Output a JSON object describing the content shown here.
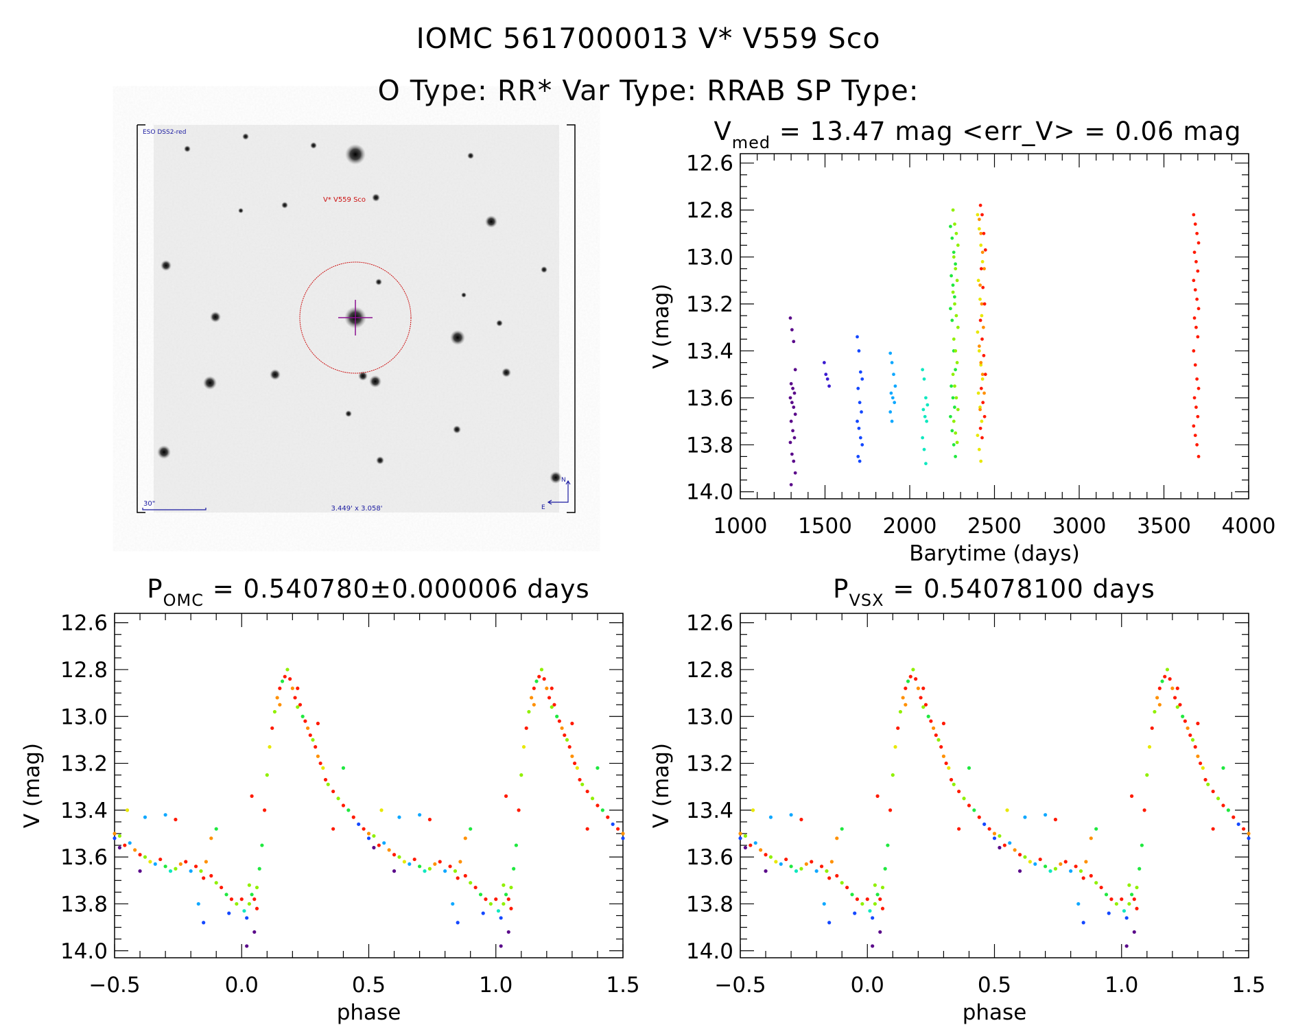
{
  "header": {
    "title": "IOMC 5617000013   V* V559 Sco",
    "subtitle": "O Type: RR*  Var Type: RRAB  SP Type:"
  },
  "finder": {
    "survey": "ESO DSS2-red",
    "target_label": "V* V559 Sco",
    "scale_label": "30\"",
    "field_size": "3.449' x 3.058'",
    "north": "N",
    "east": "E",
    "colors": {
      "annotation": "#1a1aa0",
      "target": "#cc1010",
      "crosshair": "#8a1090"
    }
  },
  "palette": [
    "#5a0a8a",
    "#3a1ad0",
    "#1448ff",
    "#10a8ff",
    "#10e8c0",
    "#20e840",
    "#90f000",
    "#e8e800",
    "#ff9000",
    "#ff1a00"
  ],
  "chart_data": [
    {
      "type": "scatter",
      "title_main": "V",
      "title_sub": "med",
      "title_rest": " = 13.47 mag <err_V> = 0.06 mag",
      "xlabel": "Barytime (days)",
      "ylabel": "V (mag)",
      "xlim": [
        1000,
        4000
      ],
      "ylim": [
        12.56,
        14.03
      ],
      "y_inverted": true,
      "xticks": [
        "1000",
        "1500",
        "2000",
        "2500",
        "3000",
        "3500",
        "4000"
      ],
      "xtick_values": [
        1000,
        1500,
        2000,
        2500,
        3000,
        3500,
        4000
      ],
      "yticks": [
        "12.6",
        "12.8",
        "13.0",
        "13.2",
        "13.4",
        "13.6",
        "13.8",
        "14.0"
      ],
      "ytick_values": [
        12.6,
        12.8,
        13.0,
        13.2,
        13.4,
        13.6,
        13.8,
        14.0
      ],
      "grid": false,
      "groups": [
        {
          "t": 1310,
          "color": 0,
          "mags": [
            13.26,
            13.31,
            13.36,
            13.48,
            13.54,
            13.56,
            13.58,
            13.6,
            13.62,
            13.64,
            13.67,
            13.7,
            13.74,
            13.77,
            13.79,
            13.84,
            13.87,
            13.92,
            13.97
          ]
        },
        {
          "t": 1510,
          "color": 1,
          "mags": [
            13.45,
            13.5,
            13.52,
            13.55
          ]
        },
        {
          "t": 1705,
          "color": 2,
          "mags": [
            13.34,
            13.4,
            13.49,
            13.52,
            13.56,
            13.62,
            13.66,
            13.7,
            13.73,
            13.77,
            13.8,
            13.85,
            13.87
          ]
        },
        {
          "t": 1900,
          "color": 3,
          "mags": [
            13.41,
            13.45,
            13.5,
            13.55,
            13.58,
            13.6,
            13.62,
            13.66,
            13.7
          ]
        },
        {
          "t": 2090,
          "color": 4,
          "mags": [
            13.48,
            13.52,
            13.6,
            13.63,
            13.65,
            13.68,
            13.7,
            13.77,
            13.82,
            13.88
          ]
        },
        {
          "t": 2255,
          "color": 5,
          "mags": [
            12.87,
            12.92,
            12.98,
            13.03,
            13.08,
            13.12,
            13.17,
            13.22,
            13.27,
            13.4,
            13.48,
            13.55,
            13.6,
            13.64,
            13.68,
            13.74,
            13.8,
            13.85
          ]
        },
        {
          "t": 2270,
          "color": 6,
          "mags": [
            12.8,
            12.86,
            12.9,
            12.95,
            13.0,
            13.05,
            13.1,
            13.15,
            13.2,
            13.25,
            13.3,
            13.35,
            13.4,
            13.45,
            13.5,
            13.55,
            13.6,
            13.65,
            13.7,
            13.75,
            13.79
          ]
        },
        {
          "t": 2415,
          "color": 7,
          "mags": [
            12.82,
            12.88,
            12.95,
            13.02,
            13.1,
            13.18,
            13.25,
            13.32,
            13.4,
            13.46,
            13.52,
            13.58,
            13.64,
            13.7,
            13.76,
            13.82,
            13.87
          ]
        },
        {
          "t": 2425,
          "color": 8,
          "mags": [
            12.84,
            12.9,
            12.98,
            13.05,
            13.12,
            13.2,
            13.3,
            13.38,
            13.45,
            13.5,
            13.58,
            13.65
          ]
        },
        {
          "t": 2432,
          "color": 9,
          "mags": [
            12.78,
            12.82,
            12.9,
            12.97,
            13.05,
            13.13,
            13.2,
            13.27,
            13.35,
            13.42,
            13.5,
            13.56,
            13.62,
            13.68,
            13.73,
            13.77
          ]
        },
        {
          "t": 3690,
          "color": 9,
          "mags": [
            12.82,
            12.86,
            12.9,
            12.94,
            12.98,
            13.02,
            13.06,
            13.1,
            13.14,
            13.18,
            13.22,
            13.26,
            13.3,
            13.34,
            13.4,
            13.46,
            13.52,
            13.56,
            13.6,
            13.64,
            13.68,
            13.72,
            13.76,
            13.8,
            13.85
          ]
        }
      ]
    },
    {
      "type": "scatter",
      "title_main": "P",
      "title_sub": "OMC",
      "title_rest": " = 0.540780±0.000006 days",
      "xlabel": "phase",
      "ylabel": "V (mag)",
      "xlim": [
        -0.5,
        1.5
      ],
      "ylim": [
        12.56,
        14.03
      ],
      "y_inverted": true,
      "xticks": [
        "−0.5",
        "0.0",
        "0.5",
        "1.0",
        "1.5"
      ],
      "xtick_values": [
        -0.5,
        0.0,
        0.5,
        1.0,
        1.5
      ],
      "yticks": [
        "12.6",
        "12.8",
        "13.0",
        "13.2",
        "13.4",
        "13.6",
        "13.8",
        "14.0"
      ],
      "ytick_values": [
        12.6,
        12.8,
        13.0,
        13.2,
        13.4,
        13.6,
        13.8,
        14.0
      ],
      "grid": false,
      "points": [
        [
          0.0,
          13.78,
          9
        ],
        [
          0.01,
          13.83,
          4
        ],
        [
          0.02,
          13.86,
          2
        ],
        [
          0.03,
          13.8,
          6
        ],
        [
          0.04,
          13.76,
          5
        ],
        [
          0.05,
          13.78,
          9
        ],
        [
          0.06,
          13.73,
          6
        ],
        [
          0.02,
          13.98,
          0
        ],
        [
          0.05,
          13.92,
          0
        ],
        [
          0.03,
          13.72,
          6
        ],
        [
          0.07,
          13.65,
          5
        ],
        [
          0.06,
          13.82,
          9
        ],
        [
          0.08,
          13.55,
          5
        ],
        [
          0.09,
          13.4,
          9
        ],
        [
          0.1,
          13.25,
          6
        ],
        [
          0.11,
          13.13,
          7
        ],
        [
          0.12,
          13.05,
          9
        ],
        [
          0.13,
          12.98,
          6
        ],
        [
          0.14,
          12.92,
          8
        ],
        [
          0.15,
          12.88,
          9
        ],
        [
          0.16,
          12.85,
          5
        ],
        [
          0.17,
          12.83,
          9
        ],
        [
          0.18,
          12.8,
          6
        ],
        [
          0.19,
          12.84,
          9
        ],
        [
          0.2,
          12.88,
          8
        ],
        [
          0.21,
          12.92,
          9
        ],
        [
          0.22,
          12.96,
          6
        ],
        [
          0.23,
          12.95,
          9
        ],
        [
          0.24,
          13.0,
          5
        ],
        [
          0.25,
          13.02,
          9
        ],
        [
          0.26,
          13.05,
          8
        ],
        [
          0.27,
          13.08,
          9
        ],
        [
          0.28,
          13.1,
          6
        ],
        [
          0.29,
          13.13,
          9
        ],
        [
          0.3,
          13.17,
          8
        ],
        [
          0.31,
          13.2,
          9
        ],
        [
          0.32,
          13.22,
          7
        ],
        [
          0.33,
          13.27,
          9
        ],
        [
          0.34,
          13.29,
          6
        ],
        [
          0.36,
          13.32,
          9
        ],
        [
          0.38,
          13.35,
          6
        ],
        [
          0.4,
          13.38,
          9
        ],
        [
          0.42,
          13.4,
          5
        ],
        [
          0.44,
          13.43,
          9
        ],
        [
          0.46,
          13.46,
          2
        ],
        [
          0.48,
          13.48,
          9
        ],
        [
          0.5,
          13.5,
          8
        ],
        [
          0.52,
          13.51,
          6
        ],
        [
          0.54,
          13.55,
          9
        ],
        [
          0.56,
          13.54,
          3
        ],
        [
          0.58,
          13.57,
          8
        ],
        [
          0.6,
          13.59,
          9
        ],
        [
          0.62,
          13.6,
          6
        ],
        [
          0.64,
          13.62,
          7
        ],
        [
          0.66,
          13.63,
          3
        ],
        [
          0.68,
          13.61,
          9
        ],
        [
          0.7,
          13.64,
          5
        ],
        [
          0.72,
          13.66,
          4
        ],
        [
          0.74,
          13.65,
          6
        ],
        [
          0.76,
          13.63,
          8
        ],
        [
          0.78,
          13.62,
          9
        ],
        [
          0.8,
          13.66,
          3
        ],
        [
          0.82,
          13.64,
          9
        ],
        [
          0.84,
          13.66,
          6
        ],
        [
          0.85,
          13.69,
          9
        ],
        [
          0.86,
          13.62,
          8
        ],
        [
          0.88,
          13.68,
          9
        ],
        [
          0.9,
          13.71,
          6
        ],
        [
          0.92,
          13.73,
          9
        ],
        [
          0.94,
          13.76,
          5
        ],
        [
          0.96,
          13.78,
          9
        ],
        [
          0.98,
          13.8,
          6
        ],
        [
          0.04,
          13.34,
          9
        ],
        [
          0.15,
          12.95,
          8
        ],
        [
          0.22,
          12.88,
          9
        ],
        [
          0.4,
          13.22,
          5
        ],
        [
          0.36,
          13.48,
          9
        ],
        [
          0.55,
          13.4,
          7
        ],
        [
          0.6,
          13.66,
          0
        ],
        [
          0.62,
          13.43,
          3
        ],
        [
          0.85,
          13.88,
          2
        ],
        [
          0.9,
          13.48,
          5
        ],
        [
          0.7,
          13.42,
          3
        ],
        [
          0.74,
          13.44,
          9
        ],
        [
          0.5,
          13.52,
          2
        ],
        [
          0.52,
          13.56,
          0
        ],
        [
          0.3,
          13.03,
          9
        ],
        [
          0.83,
          13.8,
          3
        ],
        [
          0.88,
          13.52,
          8
        ],
        [
          0.95,
          13.84,
          2
        ]
      ]
    },
    {
      "type": "scatter",
      "title_main": "P",
      "title_sub": "VSX",
      "title_rest": " = 0.54078100 days",
      "xlabel": "phase",
      "ylabel": "V (mag)",
      "xlim": [
        -0.5,
        1.5
      ],
      "ylim": [
        12.56,
        14.03
      ],
      "y_inverted": true,
      "xticks": [
        "−0.5",
        "0.0",
        "0.5",
        "1.0",
        "1.5"
      ],
      "xtick_values": [
        -0.5,
        0.0,
        0.5,
        1.0,
        1.5
      ],
      "yticks": [
        "12.6",
        "12.8",
        "13.0",
        "13.2",
        "13.4",
        "13.6",
        "13.8",
        "14.0"
      ],
      "ytick_values": [
        12.6,
        12.8,
        13.0,
        13.2,
        13.4,
        13.6,
        13.8,
        14.0
      ],
      "grid": false,
      "points": [
        [
          0.0,
          13.78,
          9
        ],
        [
          0.01,
          13.83,
          4
        ],
        [
          0.02,
          13.86,
          2
        ],
        [
          0.03,
          13.8,
          6
        ],
        [
          0.04,
          13.76,
          5
        ],
        [
          0.05,
          13.78,
          9
        ],
        [
          0.06,
          13.73,
          6
        ],
        [
          0.02,
          13.98,
          0
        ],
        [
          0.05,
          13.92,
          0
        ],
        [
          0.03,
          13.72,
          6
        ],
        [
          0.07,
          13.65,
          5
        ],
        [
          0.06,
          13.82,
          9
        ],
        [
          0.08,
          13.55,
          5
        ],
        [
          0.09,
          13.4,
          9
        ],
        [
          0.1,
          13.25,
          6
        ],
        [
          0.11,
          13.13,
          7
        ],
        [
          0.12,
          13.05,
          9
        ],
        [
          0.13,
          12.98,
          6
        ],
        [
          0.14,
          12.92,
          8
        ],
        [
          0.15,
          12.88,
          9
        ],
        [
          0.16,
          12.85,
          5
        ],
        [
          0.17,
          12.83,
          9
        ],
        [
          0.18,
          12.8,
          6
        ],
        [
          0.19,
          12.84,
          9
        ],
        [
          0.2,
          12.88,
          8
        ],
        [
          0.21,
          12.92,
          9
        ],
        [
          0.22,
          12.96,
          6
        ],
        [
          0.23,
          12.95,
          9
        ],
        [
          0.24,
          13.0,
          5
        ],
        [
          0.25,
          13.02,
          9
        ],
        [
          0.26,
          13.05,
          8
        ],
        [
          0.27,
          13.08,
          9
        ],
        [
          0.28,
          13.1,
          6
        ],
        [
          0.29,
          13.13,
          9
        ],
        [
          0.3,
          13.17,
          8
        ],
        [
          0.31,
          13.2,
          9
        ],
        [
          0.32,
          13.22,
          7
        ],
        [
          0.33,
          13.27,
          9
        ],
        [
          0.34,
          13.29,
          6
        ],
        [
          0.36,
          13.32,
          9
        ],
        [
          0.38,
          13.35,
          6
        ],
        [
          0.4,
          13.38,
          9
        ],
        [
          0.42,
          13.4,
          5
        ],
        [
          0.44,
          13.43,
          9
        ],
        [
          0.46,
          13.46,
          2
        ],
        [
          0.48,
          13.48,
          9
        ],
        [
          0.5,
          13.5,
          8
        ],
        [
          0.52,
          13.51,
          6
        ],
        [
          0.54,
          13.55,
          9
        ],
        [
          0.56,
          13.54,
          3
        ],
        [
          0.58,
          13.57,
          8
        ],
        [
          0.6,
          13.59,
          9
        ],
        [
          0.62,
          13.6,
          6
        ],
        [
          0.64,
          13.62,
          7
        ],
        [
          0.66,
          13.63,
          3
        ],
        [
          0.68,
          13.61,
          9
        ],
        [
          0.7,
          13.64,
          5
        ],
        [
          0.72,
          13.66,
          4
        ],
        [
          0.74,
          13.65,
          6
        ],
        [
          0.76,
          13.63,
          8
        ],
        [
          0.78,
          13.62,
          9
        ],
        [
          0.8,
          13.66,
          3
        ],
        [
          0.82,
          13.64,
          9
        ],
        [
          0.84,
          13.66,
          6
        ],
        [
          0.85,
          13.69,
          9
        ],
        [
          0.86,
          13.62,
          8
        ],
        [
          0.88,
          13.68,
          9
        ],
        [
          0.9,
          13.71,
          6
        ],
        [
          0.92,
          13.73,
          9
        ],
        [
          0.94,
          13.76,
          5
        ],
        [
          0.96,
          13.78,
          9
        ],
        [
          0.98,
          13.8,
          6
        ],
        [
          0.04,
          13.34,
          9
        ],
        [
          0.15,
          12.95,
          8
        ],
        [
          0.22,
          12.88,
          9
        ],
        [
          0.4,
          13.22,
          5
        ],
        [
          0.36,
          13.48,
          9
        ],
        [
          0.55,
          13.4,
          7
        ],
        [
          0.6,
          13.66,
          0
        ],
        [
          0.62,
          13.43,
          3
        ],
        [
          0.85,
          13.88,
          2
        ],
        [
          0.9,
          13.48,
          5
        ],
        [
          0.7,
          13.42,
          3
        ],
        [
          0.74,
          13.44,
          9
        ],
        [
          0.5,
          13.52,
          2
        ],
        [
          0.52,
          13.56,
          0
        ],
        [
          0.3,
          13.03,
          9
        ],
        [
          0.83,
          13.8,
          3
        ],
        [
          0.88,
          13.52,
          8
        ],
        [
          0.95,
          13.84,
          2
        ]
      ]
    }
  ]
}
